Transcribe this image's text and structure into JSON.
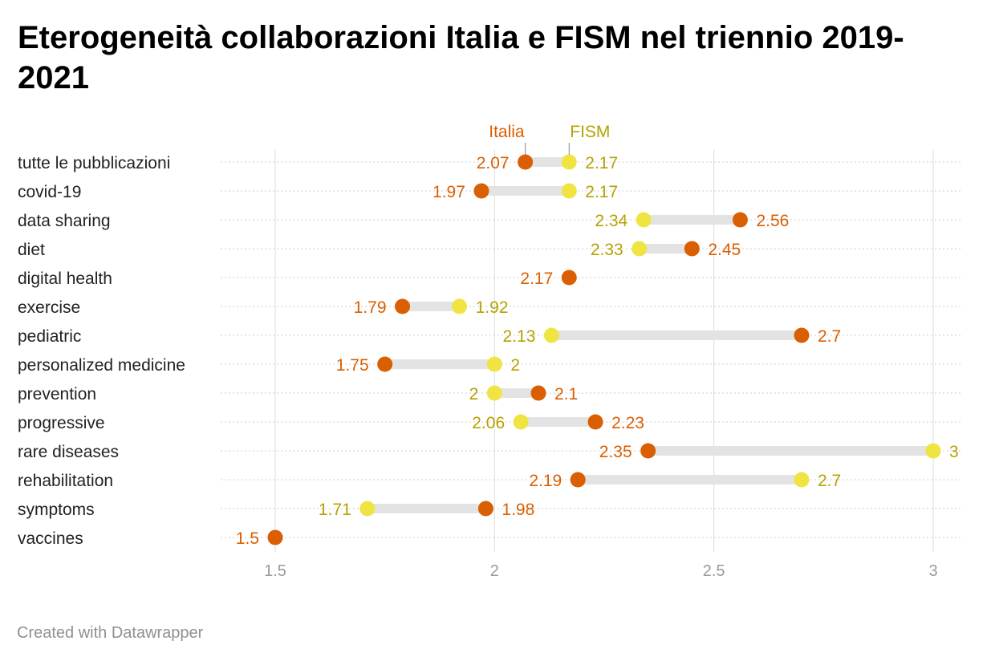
{
  "title": "Eterogeneità collaborazioni Italia e FISM nel triennio 2019-2021",
  "footer": "Created with Datawrapper",
  "colors": {
    "italia": "#d95f02",
    "fism": "#f0e442",
    "fism_label": "#b5a200",
    "connector": "#e3e3e3",
    "grid": "#dddddd",
    "row_line": "#cccccc",
    "axis_text": "#9a9a9a",
    "category_text": "#222222"
  },
  "chart_data": {
    "type": "range-dot",
    "title": "Eterogeneità collaborazioni Italia e FISM nel triennio 2019-2021",
    "xlim": [
      1.5,
      3
    ],
    "xticks": [
      "1.5",
      "2",
      "2.5",
      "3"
    ],
    "grid": true,
    "legend": "top",
    "series": [
      {
        "name": "Italia",
        "color": "#d95f02"
      },
      {
        "name": "FISM",
        "color": "#f0e442"
      }
    ],
    "categories": [
      "tutte le pubblicazioni",
      "covid-19",
      "data sharing",
      "diet",
      "digital health",
      "exercise",
      "pediatric",
      "personalized medicine",
      "prevention",
      "progressive",
      "rare diseases",
      "rehabilitation",
      "symptoms",
      "vaccines"
    ],
    "italia": [
      2.07,
      1.97,
      2.56,
      2.45,
      2.17,
      1.79,
      2.7,
      1.75,
      2.1,
      2.23,
      2.35,
      2.19,
      1.98,
      1.5
    ],
    "fism": [
      2.17,
      2.17,
      2.34,
      2.33,
      null,
      1.92,
      2.13,
      2,
      2,
      2.06,
      3,
      2.7,
      1.71,
      null
    ],
    "italia_labels": [
      "2.07",
      "1.97",
      "2.56",
      "2.45",
      "2.17",
      "1.79",
      "2.7",
      "1.75",
      "2.1",
      "2.23",
      "2.35",
      "2.19",
      "1.98",
      "1.5"
    ],
    "fism_labels": [
      "2.17",
      "2.17",
      "2.34",
      "2.33",
      "",
      "1.92",
      "2.13",
      "2",
      "2",
      "2.06",
      "3",
      "2.7",
      "1.71",
      ""
    ]
  }
}
